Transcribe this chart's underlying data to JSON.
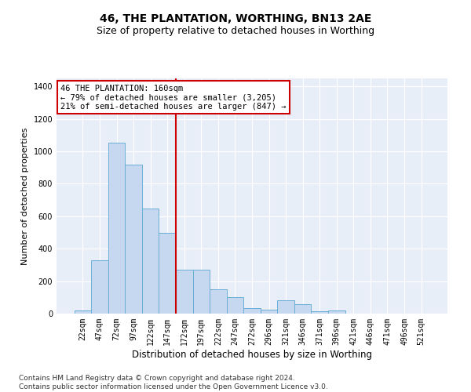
{
  "title": "46, THE PLANTATION, WORTHING, BN13 2AE",
  "subtitle": "Size of property relative to detached houses in Worthing",
  "xlabel": "Distribution of detached houses by size in Worthing",
  "ylabel": "Number of detached properties",
  "categories": [
    "22sqm",
    "47sqm",
    "72sqm",
    "97sqm",
    "122sqm",
    "147sqm",
    "172sqm",
    "197sqm",
    "222sqm",
    "247sqm",
    "272sqm",
    "296sqm",
    "321sqm",
    "346sqm",
    "371sqm",
    "396sqm",
    "421sqm",
    "446sqm",
    "471sqm",
    "496sqm",
    "521sqm"
  ],
  "values": [
    20,
    330,
    1055,
    920,
    650,
    500,
    270,
    270,
    150,
    100,
    35,
    25,
    80,
    60,
    15,
    20,
    0,
    0,
    0,
    0,
    0
  ],
  "bar_color": "#c5d8f0",
  "bar_edgecolor": "#6baed6",
  "vline_x": 6.0,
  "vline_color": "#cc0000",
  "annotation_text": "46 THE PLANTATION: 160sqm\n← 79% of detached houses are smaller (3,205)\n21% of semi-detached houses are larger (847) →",
  "annotation_box_color": "#ffffff",
  "annotation_box_edgecolor": "#cc0000",
  "ylim": [
    0,
    1450
  ],
  "yticks": [
    0,
    200,
    400,
    600,
    800,
    1000,
    1200,
    1400
  ],
  "bg_color": "#e8eef8",
  "grid_color": "#ffffff",
  "footer_text": "Contains HM Land Registry data © Crown copyright and database right 2024.\nContains public sector information licensed under the Open Government Licence v3.0.",
  "title_fontsize": 10,
  "subtitle_fontsize": 9,
  "xlabel_fontsize": 8.5,
  "ylabel_fontsize": 8,
  "tick_fontsize": 7,
  "annotation_fontsize": 7.5,
  "footer_fontsize": 6.5
}
